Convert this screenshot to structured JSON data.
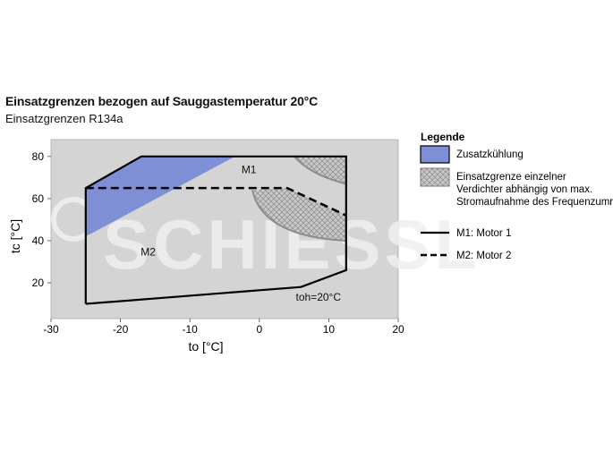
{
  "chart_title": "Einsatzgrenzen bezogen auf Sauggastemperatur 20°C",
  "chart_subtitle": "Einsatzgrenzen R134a",
  "watermark": "SCHIESSL",
  "colors": {
    "plot_bg": "#d4d4d4",
    "zusatz_fill": "#7f8fd6",
    "hatch_fill": "#c8c8c8",
    "hatch_line": "#8a8a8a",
    "envelope": "#000000",
    "grey_line": "#8c8c8c"
  },
  "chart_data": {
    "type": "area",
    "title": "Einsatzgrenzen bezogen auf Sauggastemperatur 20°C",
    "subtitle": "Einsatzgrenzen R134a",
    "xlabel": "to [°C]",
    "ylabel": "tc [°C]",
    "xlim": [
      -30,
      20
    ],
    "ylim": [
      3,
      88
    ],
    "xticks": [
      -30,
      -20,
      -10,
      0,
      10,
      20
    ],
    "yticks": [
      20,
      40,
      60,
      80
    ],
    "grid": false,
    "legend_position": "right",
    "legend_title": "Legende",
    "legend": [
      {
        "key": "zusatz",
        "label": "Zusatzkühlung"
      },
      {
        "key": "hatch",
        "label": "Einsatzgrenze einzelner Verdichter abhängig von max. Stromaufnahme des Frequenzumrichters"
      },
      {
        "key": "m1",
        "label": "M1: Motor 1"
      },
      {
        "key": "m2",
        "label": "M2: Motor 2"
      }
    ],
    "annotations": [
      {
        "text": "M1",
        "x": -1.5,
        "y": 72
      },
      {
        "text": "M2",
        "x": -16,
        "y": 33
      },
      {
        "text": "toh=20°C",
        "x": 8.5,
        "y": 11.5
      }
    ],
    "series": [
      {
        "name": "M1: Motor 1",
        "style": "solid",
        "points": [
          [
            -25,
            10
          ],
          [
            6,
            18
          ],
          [
            12.5,
            26
          ],
          [
            12.5,
            80
          ],
          [
            -17,
            80
          ],
          [
            -25,
            65
          ],
          [
            -25,
            10
          ]
        ]
      },
      {
        "name": "M2: Motor 2",
        "style": "dashed",
        "points": [
          [
            -25,
            65
          ],
          [
            4,
            65
          ],
          [
            12.5,
            52
          ]
        ]
      }
    ],
    "regions": [
      {
        "name": "Zusatzkühlung",
        "points": [
          [
            -25,
            42
          ],
          [
            -3.5,
            80
          ],
          [
            -17,
            80
          ],
          [
            -25,
            65
          ]
        ]
      },
      {
        "name": "Einsatzgrenze einzelner Verdichter",
        "parts": [
          {
            "points": [
              [
                5,
                80
              ],
              [
                12.5,
                80
              ],
              [
                12.5,
                67
              ]
            ],
            "curve": [
              7.5,
              71
            ]
          },
          {
            "points": [
              [
                -1,
                64
              ],
              [
                12.5,
                40
              ]
            ],
            "curve": [
              0.5,
              42
            ]
          }
        ]
      }
    ]
  }
}
